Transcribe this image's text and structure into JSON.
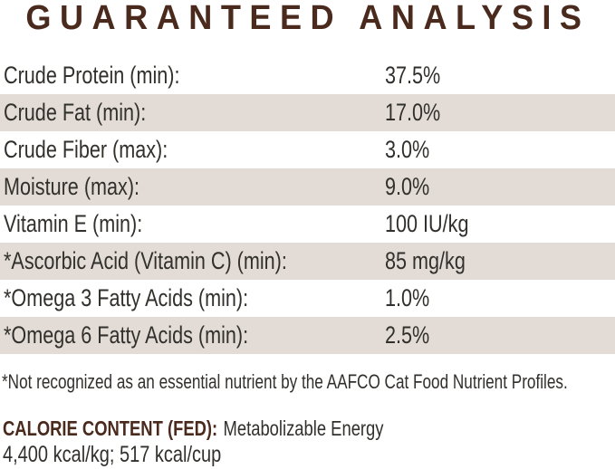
{
  "title": "GUARANTEED ANALYSIS",
  "table": {
    "rows": [
      {
        "label": "Crude Protein (min):",
        "value": "37.5%"
      },
      {
        "label": "Crude Fat (min):",
        "value": "17.0%"
      },
      {
        "label": "Crude Fiber (max):",
        "value": "3.0%"
      },
      {
        "label": "Moisture (max):",
        "value": "9.0%"
      },
      {
        "label": "Vitamin E (min):",
        "value": "100 IU/kg"
      },
      {
        "label": "*Ascorbic Acid (Vitamin C) (min):",
        "value": "85 mg/kg"
      },
      {
        "label": "*Omega 3 Fatty Acids (min):",
        "value": "1.0%"
      },
      {
        "label": "*Omega 6 Fatty Acids (min):",
        "value": "2.5%"
      }
    ]
  },
  "footnote": "*Not recognized as an essential nutrient by the AAFCO Cat Food Nutrient Profiles.",
  "calorie": {
    "heading": "CALORIE CONTENT (FED):",
    "description": "Metabolizable Energy",
    "energy": "4,400 kcal/kg; 517 kcal/cup"
  },
  "colors": {
    "brown": "#4a2a1d",
    "text": "#32302c",
    "shade": "#e3dcd6",
    "bg": "#ffffff"
  }
}
